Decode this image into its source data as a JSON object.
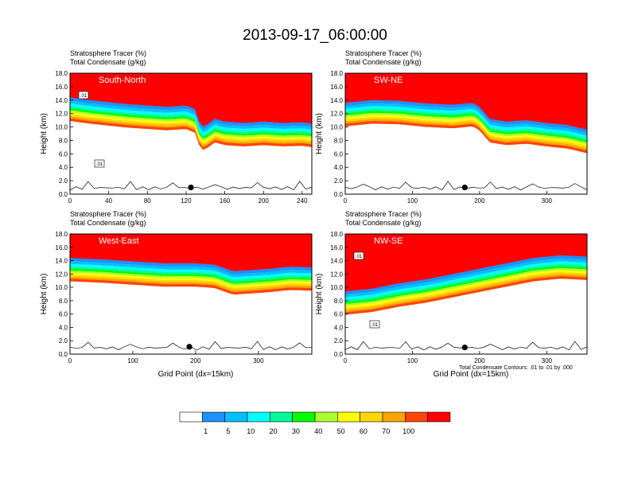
{
  "figure": {
    "title": "2013-09-17_06:00:00",
    "panel_header_line1": "Stratosphere Tracer   (%)",
    "panel_header_line2": "Total Condensate   (g/kg)",
    "xlabel": "Grid Point (dx=15km)",
    "ylabel": "Height (km)",
    "contour_note": "Total Condensate Contours: .01 to .01 by .000"
  },
  "colors": {
    "levels": [
      "#ffffff",
      "#1e90ff",
      "#00bfff",
      "#00ffff",
      "#00fa9a",
      "#00ff00",
      "#adff2f",
      "#ffff00",
      "#ffd700",
      "#ffa500",
      "#ff4500",
      "#ff0000"
    ]
  },
  "colorbar": {
    "labels": [
      "1",
      "5",
      "10",
      "20",
      "30",
      "40",
      "50",
      "60",
      "70",
      "100"
    ]
  },
  "chart_data": [
    {
      "type": "heatmap",
      "name": "South-North",
      "xlabel": "",
      "ylabel": "Height (km)",
      "xlim": [
        0,
        250
      ],
      "ylim": [
        0,
        18
      ],
      "xticks": [
        "0",
        "40",
        "80",
        "120",
        "160",
        "200",
        "240"
      ],
      "yticks": [
        "0.0",
        "2.0",
        "4.0",
        "6.0",
        "8.0",
        "10.0",
        "12.0",
        "14.0",
        "16.0",
        "18.0"
      ],
      "contour_labels": [
        ".01",
        ".01"
      ],
      "marker_x": 125,
      "marker_y": 1.0,
      "tracer_base_km": [
        [
          0,
          14.4
        ],
        [
          20,
          14.0
        ],
        [
          40,
          13.7
        ],
        [
          60,
          13.4
        ],
        [
          80,
          13.2
        ],
        [
          100,
          13.0
        ],
        [
          120,
          13.2
        ],
        [
          130,
          12.6
        ],
        [
          135,
          10.0
        ],
        [
          140,
          10.2
        ],
        [
          150,
          11.2
        ],
        [
          160,
          10.8
        ],
        [
          180,
          10.6
        ],
        [
          200,
          10.8
        ],
        [
          220,
          10.6
        ],
        [
          240,
          10.7
        ],
        [
          250,
          10.5
        ]
      ]
    },
    {
      "type": "heatmap",
      "name": "SW-NE",
      "xlabel": "",
      "ylabel": "Height (km)",
      "xlim": [
        0,
        360
      ],
      "ylim": [
        0,
        18
      ],
      "xticks": [
        "0",
        "100",
        "200",
        "300"
      ],
      "yticks": [
        "0.0",
        "2.0",
        "4.0",
        "6.0",
        "8.0",
        "10.0",
        "12.0",
        "14.0",
        "16.0",
        "18.0"
      ],
      "contour_labels": [],
      "marker_x": 178,
      "marker_y": 1.0,
      "tracer_base_km": [
        [
          0,
          13.6
        ],
        [
          40,
          14.0
        ],
        [
          80,
          13.9
        ],
        [
          120,
          13.5
        ],
        [
          160,
          13.3
        ],
        [
          190,
          13.6
        ],
        [
          200,
          13.0
        ],
        [
          215,
          11.2
        ],
        [
          240,
          10.8
        ],
        [
          270,
          11.0
        ],
        [
          300,
          10.6
        ],
        [
          330,
          10.3
        ],
        [
          360,
          9.6
        ]
      ]
    },
    {
      "type": "heatmap",
      "name": "West-East",
      "xlabel": "Grid Point (dx=15km)",
      "ylabel": "Height (km)",
      "xlim": [
        0,
        385
      ],
      "ylim": [
        0,
        18
      ],
      "xticks": [
        "0",
        "100",
        "200",
        "300"
      ],
      "yticks": [
        "0.0",
        "2.0",
        "4.0",
        "6.0",
        "8.0",
        "10.0",
        "12.0",
        "14.0",
        "16.0",
        "18.0"
      ],
      "contour_labels": [],
      "marker_x": 190,
      "marker_y": 1.1,
      "tracer_base_km": [
        [
          0,
          14.4
        ],
        [
          50,
          14.2
        ],
        [
          100,
          13.9
        ],
        [
          150,
          13.6
        ],
        [
          200,
          13.6
        ],
        [
          230,
          13.4
        ],
        [
          260,
          12.4
        ],
        [
          290,
          12.6
        ],
        [
          320,
          12.8
        ],
        [
          350,
          13.1
        ],
        [
          385,
          13.0
        ]
      ]
    },
    {
      "type": "heatmap",
      "name": "NW-SE",
      "xlabel": "Grid Point (dx=15km)",
      "ylabel": "Height (km)",
      "xlim": [
        0,
        360
      ],
      "ylim": [
        0,
        18
      ],
      "xticks": [
        "0",
        "100",
        "200",
        "300"
      ],
      "yticks": [
        "0.0",
        "2.0",
        "4.0",
        "6.0",
        "8.0",
        "10.0",
        "12.0",
        "14.0",
        "16.0",
        "18.0"
      ],
      "contour_labels": [
        ".01",
        ".01"
      ],
      "marker_x": 178,
      "marker_y": 1.0,
      "tracer_base_km": [
        [
          0,
          9.4
        ],
        [
          40,
          9.8
        ],
        [
          80,
          10.6
        ],
        [
          120,
          11.2
        ],
        [
          160,
          12.0
        ],
        [
          200,
          12.8
        ],
        [
          240,
          13.6
        ],
        [
          280,
          14.4
        ],
        [
          320,
          14.8
        ],
        [
          360,
          14.6
        ]
      ]
    }
  ]
}
